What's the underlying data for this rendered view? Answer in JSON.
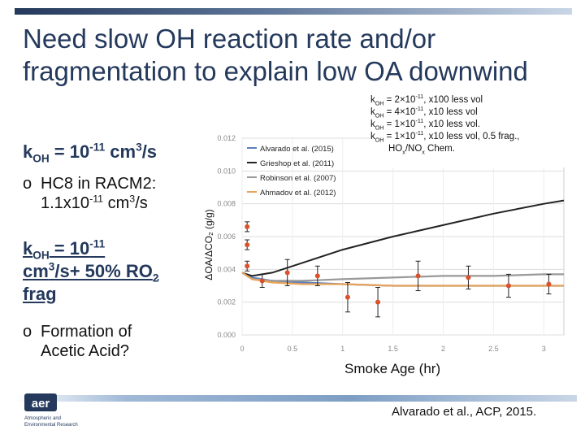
{
  "title": {
    "line1": "Need slow OH reaction rate and/or",
    "line2": "fragmentation to explain low OA downwind"
  },
  "left_panel": {
    "k1": {
      "prefix": "k",
      "sub": "OH",
      "mid": " = 10",
      "sup": "-11",
      "mid2": " cm",
      "sup2": "3",
      "end": "/s"
    },
    "bullet1": {
      "line1": "HC8 in RACM2:",
      "line2a": "1.1x10",
      "line2sup": "-11",
      "line2b": " cm",
      "line2sup2": "3",
      "line2c": "/s"
    },
    "k2": {
      "prefix": "k",
      "sub": "OH",
      "mid": " = 10",
      "sup": "-11",
      "line2a": "cm",
      "line2sup": "3",
      "line2b": "/s+ 50% RO",
      "line2sub": "2",
      "line3": "frag"
    },
    "bullet2": {
      "line1": "Formation of",
      "line2": "Acetic Acid?"
    },
    "bullet_mark": "o"
  },
  "legend_box": [
    {
      "k": "k",
      "sub": "OH",
      "rest": " = 2×10",
      "sup": "-11",
      "tail": ", x100 less vol"
    },
    {
      "k": "k",
      "sub": "OH",
      "rest": " = 4×10",
      "sup": "-11",
      "tail": ", x10 less vol"
    },
    {
      "k": "k",
      "sub": "OH",
      "rest": " = 1×10",
      "sup": "-11",
      "tail": ", x10 less vol."
    },
    {
      "k": "k",
      "sub": "OH",
      "rest": " = 1×10",
      "sup": "-11",
      "tail": ", x10 less vol, 0.5 frag.,"
    }
  ],
  "legend_box_last": {
    "a": "HO",
    "sub1": "x",
    "b": "/NO",
    "sub2": "x",
    "c": " Chem."
  },
  "chart_data": {
    "type": "line",
    "ylabel": "ΔOA/ΔCO₂ (g/g)",
    "xlabel": "Smoke Age (hr)",
    "ylim": [
      0,
      0.012
    ],
    "xlim": [
      0,
      3.2
    ],
    "yticks": [
      "0.000",
      "0.002",
      "0.004",
      "0.006",
      "0.008",
      "0.010",
      "0.012"
    ],
    "xticks": [
      "0",
      "0.5",
      "1",
      "1.5",
      "2",
      "2.5",
      "3"
    ],
    "series": [
      {
        "name": "Alvarado et al. (2015)",
        "color": "#5b7fbf",
        "x": [
          0,
          0.1,
          0.3,
          0.6,
          1,
          1.5,
          2,
          2.5,
          3,
          3.2
        ],
        "y": [
          0.0038,
          0.0035,
          0.0033,
          0.0032,
          0.0031,
          0.003,
          0.003,
          0.003,
          0.003,
          0.003
        ]
      },
      {
        "name": "Grieshop et al. (2011)",
        "color": "#222222",
        "x": [
          0,
          0.1,
          0.3,
          0.6,
          1,
          1.5,
          2,
          2.5,
          3,
          3.2
        ],
        "y": [
          0.0038,
          0.0036,
          0.0038,
          0.0044,
          0.0052,
          0.006,
          0.0067,
          0.0074,
          0.008,
          0.0082
        ]
      },
      {
        "name": "Robinson et al. (2007)",
        "color": "#999999",
        "x": [
          0,
          0.1,
          0.3,
          0.6,
          1,
          1.5,
          2,
          2.5,
          3,
          3.2
        ],
        "y": [
          0.0038,
          0.0034,
          0.0033,
          0.0033,
          0.0034,
          0.0035,
          0.0036,
          0.0036,
          0.0037,
          0.0037
        ]
      },
      {
        "name": "Ahmadov et al. (2012)",
        "color": "#e8a35a",
        "x": [
          0,
          0.1,
          0.3,
          0.6,
          1,
          1.5,
          2,
          2.5,
          3,
          3.2
        ],
        "y": [
          0.0038,
          0.0034,
          0.0032,
          0.0031,
          0.0031,
          0.003,
          0.003,
          0.003,
          0.003,
          0.003
        ]
      }
    ],
    "observations": {
      "color": "#d9522c",
      "x": [
        0.05,
        0.05,
        0.05,
        0.2,
        0.45,
        0.75,
        1.05,
        1.35,
        1.75,
        2.25,
        2.65,
        3.05
      ],
      "y": [
        0.0066,
        0.0055,
        0.0042,
        0.0033,
        0.0038,
        0.0036,
        0.0023,
        0.002,
        0.0036,
        0.0035,
        0.003,
        0.0031
      ],
      "err": [
        0.0003,
        0.0003,
        0.0003,
        0.0004,
        0.0008,
        0.0006,
        0.0009,
        0.0009,
        0.0009,
        0.0007,
        0.0007,
        0.0006
      ]
    }
  },
  "citation": "Alvarado et al., ACP, 2015.",
  "logo": {
    "mark": "aer",
    "line1": "Atmospheric and",
    "line2": "Environmental Research"
  }
}
